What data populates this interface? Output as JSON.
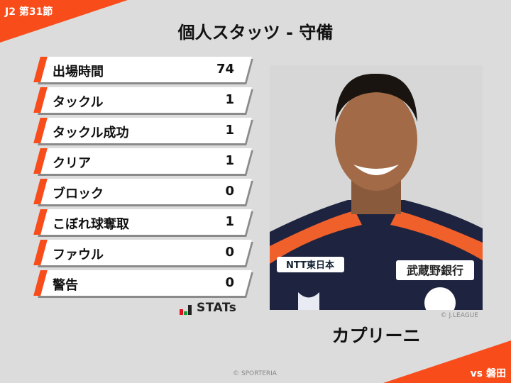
{
  "header": {
    "round": "J2 第31節",
    "title": "個人スタッツ - 守備"
  },
  "stats": [
    {
      "label": "出場時間",
      "value": "74"
    },
    {
      "label": "タックル",
      "value": "1"
    },
    {
      "label": "タックル成功",
      "value": "1"
    },
    {
      "label": "クリア",
      "value": "1"
    },
    {
      "label": "ブロック",
      "value": "0"
    },
    {
      "label": "こぼれ球奪取",
      "value": "1"
    },
    {
      "label": "ファウル",
      "value": "0"
    },
    {
      "label": "警告",
      "value": "0"
    }
  ],
  "stats_logo": "STATs",
  "player": {
    "name": "カプリーニ",
    "photo_credit": "© J.LEAGUE",
    "sponsor_left": "NTT東日本",
    "sponsor_right": "武蔵野銀行"
  },
  "footer": {
    "credit": "© SPORTERIA",
    "opponent": "vs 磐田"
  },
  "colors": {
    "accent": "#f84c1a",
    "background": "#dcdcdc"
  }
}
